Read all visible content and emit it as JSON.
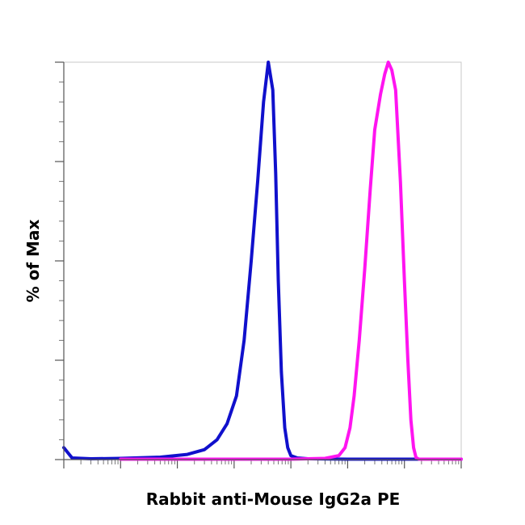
{
  "chart_data": {
    "type": "line",
    "title": "",
    "xlabel": "Rabbit anti-Mouse IgG2a PE",
    "ylabel": "% of Max",
    "x_scale": "log",
    "xlim": [
      0.1,
      1000000
    ],
    "ylim": [
      0,
      100
    ],
    "grid": false,
    "legend": "none",
    "series": [
      {
        "color": "#1010cc",
        "points": [
          [
            0.1,
            3
          ],
          [
            0.14,
            0.4
          ],
          [
            0.3,
            0.2
          ],
          [
            1,
            0.3
          ],
          [
            5,
            0.6
          ],
          [
            15,
            1.3
          ],
          [
            30,
            2.5
          ],
          [
            50,
            5
          ],
          [
            75,
            9
          ],
          [
            110,
            16
          ],
          [
            150,
            30
          ],
          [
            200,
            50
          ],
          [
            260,
            70
          ],
          [
            330,
            90
          ],
          [
            400,
            100
          ],
          [
            480,
            93
          ],
          [
            540,
            72
          ],
          [
            600,
            45
          ],
          [
            680,
            22
          ],
          [
            780,
            8
          ],
          [
            880,
            3
          ],
          [
            1000,
            1
          ],
          [
            1300,
            0.4
          ],
          [
            2000,
            0.2
          ],
          [
            10000,
            0.1
          ],
          [
            100000,
            0.1
          ],
          [
            1000000,
            0.1
          ]
        ]
      },
      {
        "color": "#ff14f0",
        "points": [
          [
            1,
            0.1
          ],
          [
            100,
            0.1
          ],
          [
            1000,
            0.1
          ],
          [
            4000,
            0.3
          ],
          [
            7000,
            1
          ],
          [
            9000,
            3
          ],
          [
            11000,
            8
          ],
          [
            13000,
            16
          ],
          [
            16000,
            30
          ],
          [
            20000,
            48
          ],
          [
            25000,
            68
          ],
          [
            30000,
            83
          ],
          [
            38000,
            92
          ],
          [
            45000,
            97
          ],
          [
            52000,
            100
          ],
          [
            60000,
            98
          ],
          [
            70000,
            93
          ],
          [
            85000,
            70
          ],
          [
            100000,
            45
          ],
          [
            115000,
            25
          ],
          [
            130000,
            10
          ],
          [
            145000,
            3
          ],
          [
            160000,
            0.5
          ],
          [
            180000,
            0.1
          ],
          [
            1000000,
            0.1
          ]
        ]
      }
    ]
  }
}
